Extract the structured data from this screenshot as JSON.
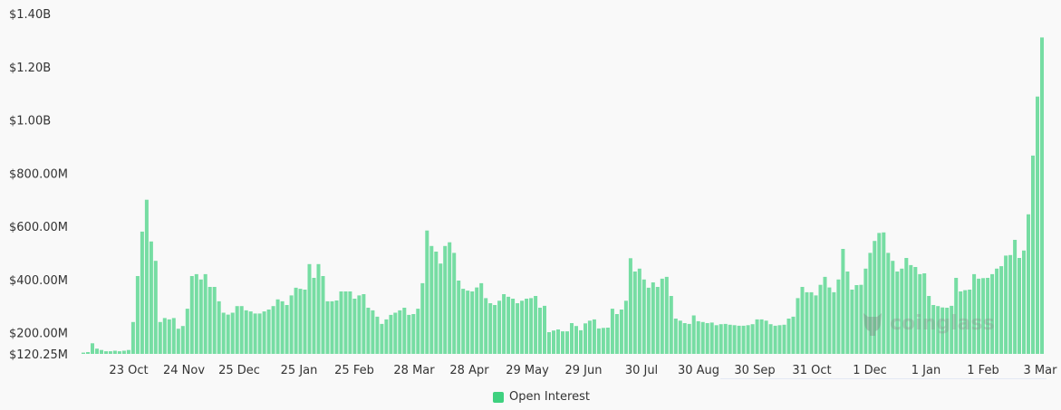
{
  "chart_data": {
    "type": "bar",
    "title": "",
    "xlabel": "",
    "ylabel": "",
    "ylim": [
      120.25,
      1400
    ],
    "y_unit": "M USD",
    "grid": false,
    "legend_position": "bottom-center",
    "y_tick_labels": [
      {
        "value": 1400,
        "label": "$1.40B"
      },
      {
        "value": 1200,
        "label": "$1.20B"
      },
      {
        "value": 1000,
        "label": "$1.00B"
      },
      {
        "value": 800,
        "label": "$800.00M"
      },
      {
        "value": 600,
        "label": "$600.00M"
      },
      {
        "value": 400,
        "label": "$400.00M"
      },
      {
        "value": 200,
        "label": "$200.00M"
      },
      {
        "value": 120.25,
        "label": "$120.25M"
      }
    ],
    "x_tick_labels": [
      "23 Oct",
      "24 Nov",
      "25 Dec",
      "25 Jan",
      "25 Feb",
      "28 Mar",
      "28 Apr",
      "29 May",
      "29 Jun",
      "30 Jul",
      "30 Aug",
      "30 Sep",
      "31 Oct",
      "1 Dec",
      "1 Jan",
      "1 Feb",
      "3 Mar"
    ],
    "series": [
      {
        "name": "Open Interest",
        "color": "#3fd17f",
        "values": [
          125,
          127,
          160,
          140,
          135,
          130,
          130,
          132,
          130,
          132,
          135,
          240,
          413,
          580,
          700,
          543,
          470,
          240,
          255,
          250,
          255,
          215,
          225,
          290,
          413,
          420,
          400,
          420,
          372,
          372,
          318,
          275,
          268,
          275,
          300,
          300,
          284,
          280,
          272,
          272,
          280,
          287,
          300,
          325,
          318,
          304,
          340,
          369,
          365,
          362,
          458,
          406,
          458,
          413,
          318,
          318,
          321,
          355,
          355,
          355,
          328,
          340,
          345,
          294,
          284,
          260,
          233,
          250,
          267,
          275,
          284,
          294,
          267,
          270,
          290,
          386,
          584,
          526,
          505,
          460,
          526,
          540,
          500,
          396,
          365,
          358,
          355,
          370,
          386,
          330,
          311,
          304,
          320,
          345,
          335,
          328,
          311,
          320,
          328,
          330,
          338,
          294,
          301,
          202,
          208,
          212,
          205,
          205,
          236,
          225,
          209,
          235,
          245,
          250,
          216,
          218,
          219,
          290,
          270,
          287,
          320,
          480,
          430,
          441,
          400,
          369,
          389,
          372,
          403,
          410,
          338,
          253,
          245,
          236,
          233,
          265,
          243,
          240,
          236,
          238,
          228,
          232,
          233,
          230,
          228,
          226,
          226,
          228,
          232,
          250,
          250,
          245,
          232,
          226,
          228,
          230,
          253,
          260,
          330,
          372,
          352,
          352,
          340,
          380,
          410,
          370,
          352,
          400,
          515,
          430,
          362,
          379,
          380,
          441,
          500,
          545,
          575,
          577,
          500,
          470,
          430,
          441,
          481,
          454,
          447,
          420,
          423,
          338,
          304,
          300,
          295,
          294,
          301,
          406,
          355,
          360,
          362,
          420,
          403,
          405,
          406,
          420,
          441,
          450,
          490,
          492,
          549,
          481,
          509,
          645,
          866,
          1088,
          1310
        ]
      }
    ]
  },
  "legend": {
    "label": "Open Interest"
  },
  "watermark": {
    "text": "coinglass"
  }
}
